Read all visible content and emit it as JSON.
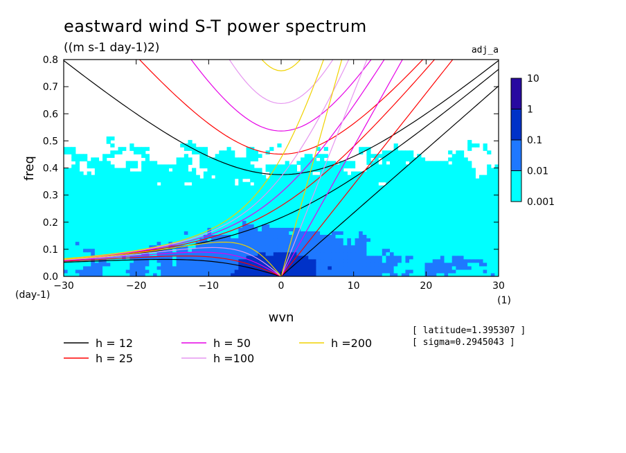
{
  "chart_data": {
    "type": "heatmap",
    "title": "eastward wind S-T power spectrum",
    "subtitle": "((m s-1 day-1)2)",
    "label_right": "adj_a",
    "xlabel": "wvn",
    "ylabel": "freq",
    "x_unit": "(1)",
    "y_unit": "(day-1)",
    "xlim": [
      -30,
      30
    ],
    "ylim": [
      0,
      0.8
    ],
    "x_ticks": [
      "-30",
      "-20",
      "-10",
      "0",
      "10",
      "20",
      "30"
    ],
    "y_ticks": [
      "0.0",
      "0.1",
      "0.2",
      "0.3",
      "0.4",
      "0.5",
      "0.6",
      "0.7",
      "0.8"
    ],
    "colorbar": {
      "levels": [
        "0.001",
        "0.01",
        "0.1",
        "1",
        "10"
      ],
      "colors": [
        "#00ffff",
        "#1e78ff",
        "#0032c8",
        "#280aa0"
      ]
    },
    "dispersion_curves": [
      {
        "label": "h = 12",
        "h": 12,
        "color": "#000000"
      },
      {
        "label": "h = 25",
        "h": 25,
        "color": "#ff0000"
      },
      {
        "label": "h = 50",
        "h": 50,
        "color": "#e600e6"
      },
      {
        "label": "h =100",
        "h": 100,
        "color": "#e696f0"
      },
      {
        "label": "h =200",
        "h": 200,
        "color": "#f0d200"
      }
    ],
    "info": [
      "[ latitude=1.395307 ]",
      "[ sigma=0.2945043 ]"
    ]
  }
}
